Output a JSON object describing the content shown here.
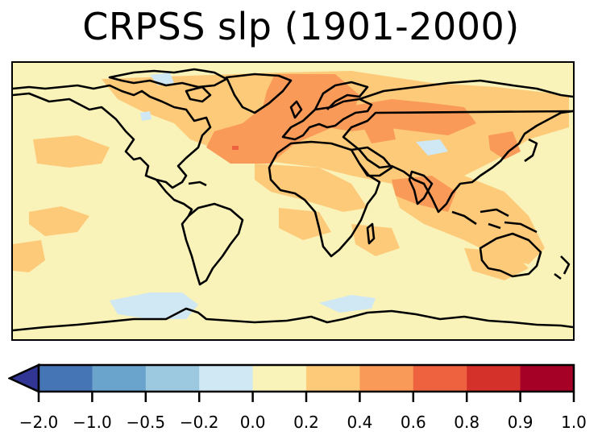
{
  "title": "CRPSS slp (1901-2000)",
  "map": {
    "variable": "slp",
    "period": "1901-2000",
    "background_color": "#f9f2b9",
    "coastline_color": "#000000"
  },
  "colorbar": {
    "extend": "min",
    "under_color": "#313695",
    "bins": [
      {
        "from": -2.0,
        "to": -1.0,
        "color": "#4575b4"
      },
      {
        "from": -1.0,
        "to": -0.5,
        "color": "#6aa3cc"
      },
      {
        "from": -0.5,
        "to": -0.2,
        "color": "#9cc9e0"
      },
      {
        "from": -0.2,
        "to": 0.0,
        "color": "#cfe8f3"
      },
      {
        "from": 0.0,
        "to": 0.2,
        "color": "#f9f2b9"
      },
      {
        "from": 0.2,
        "to": 0.4,
        "color": "#fdca7a"
      },
      {
        "from": 0.4,
        "to": 0.6,
        "color": "#f99a58"
      },
      {
        "from": 0.6,
        "to": 0.8,
        "color": "#ee6240"
      },
      {
        "from": 0.8,
        "to": 0.9,
        "color": "#d3312a"
      },
      {
        "from": 0.9,
        "to": 1.0,
        "color": "#a50026"
      }
    ],
    "tick_labels": [
      "−2.0",
      "−1.0",
      "−0.5",
      "−0.2",
      "0.0",
      "0.2",
      "0.4",
      "0.6",
      "0.8",
      "0.9",
      "1.0"
    ]
  }
}
